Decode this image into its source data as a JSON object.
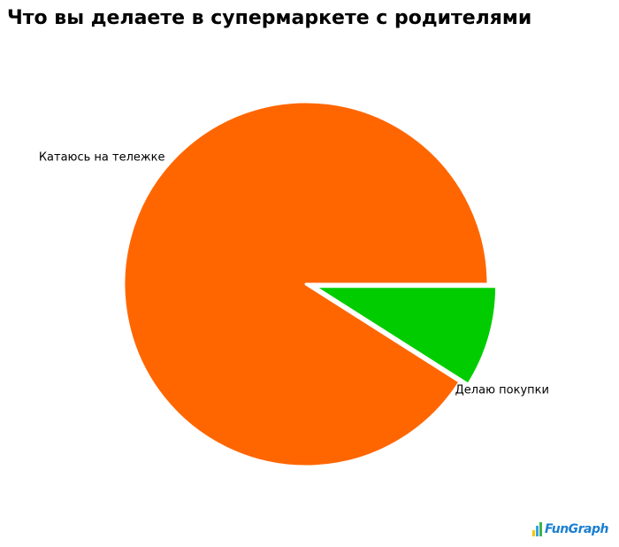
{
  "chart_data": {
    "type": "pie",
    "title": "Что вы делаете в супермаркете с родителями",
    "slices": [
      {
        "label": "Катаюсь на тележке",
        "value": 91,
        "color": "#ff6600",
        "exploded": false
      },
      {
        "label": "Делаю покупки",
        "value": 9,
        "color": "#00cc00",
        "exploded": true
      }
    ],
    "legend": "none",
    "start_angle_deg": 0,
    "direction": "clockwise"
  },
  "brand": {
    "logo_text": "FunGraph",
    "logo_colors": [
      "#f7c600",
      "#3aa0e8",
      "#3ab54a"
    ],
    "text_color": "#1a7fd0"
  }
}
